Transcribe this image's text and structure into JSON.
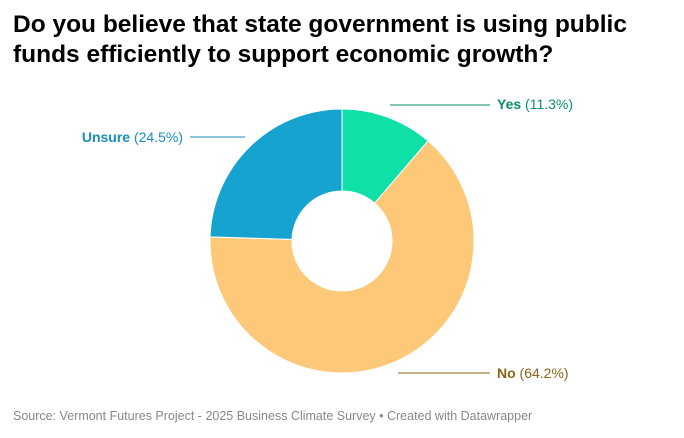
{
  "title": "Do you believe that state government is using public funds efficiently to support economic growth?",
  "source": "Source: Vermont Futures Project - 2025 Business Climate Survey • Created with Datawrapper",
  "chart_data": {
    "type": "pie",
    "style": "donut",
    "slices": [
      {
        "name": "Yes",
        "value": 11.3,
        "label": "(11.3%)",
        "color": "#0ee0a8",
        "text_color": "#0a8f6a"
      },
      {
        "name": "No",
        "value": 64.2,
        "label": "(64.2%)",
        "color": "#fdc978",
        "text_color": "#8a6516"
      },
      {
        "name": "Unsure",
        "value": 24.5,
        "label": "(24.5%)",
        "color": "#16a3d0",
        "text_color": "#1a8dbd"
      }
    ]
  }
}
